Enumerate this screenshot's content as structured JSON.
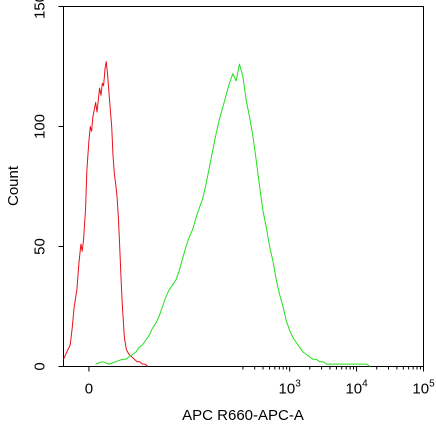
{
  "chart_data": {
    "type": "line",
    "title": "",
    "xlabel": "APC R660-APC-A",
    "ylabel": "Count",
    "scale_x": "biexponential (log above 10^2)",
    "ylim": [
      0,
      150
    ],
    "y_ticks": [
      {
        "value": 0,
        "label": "0"
      },
      {
        "value": 50,
        "label": "50"
      },
      {
        "value": 100,
        "label": "100"
      },
      {
        "value": 150,
        "label": "150"
      }
    ],
    "x_ticks": [
      {
        "value": 0,
        "label": "0",
        "sup": ""
      },
      {
        "value": 3,
        "label": "10",
        "sup": "3"
      },
      {
        "value": 4,
        "label": "10",
        "sup": "4"
      },
      {
        "value": 5,
        "label": "10",
        "sup": "5"
      }
    ],
    "xlim": [
      -0.38,
      5.0
    ],
    "grid": false,
    "legend": "none",
    "series": [
      {
        "color": "#e8101a",
        "x": [
          -0.38,
          -0.33,
          -0.28,
          -0.25,
          -0.22,
          -0.18,
          -0.15,
          -0.12,
          -0.1,
          -0.08,
          -0.05,
          -0.03,
          0.0,
          0.02,
          0.04,
          0.06,
          0.08,
          0.1,
          0.12,
          0.14,
          0.16,
          0.18,
          0.2,
          0.22,
          0.24,
          0.26,
          0.28,
          0.3,
          0.32,
          0.34,
          0.36,
          0.38,
          0.4,
          0.42,
          0.44,
          0.46,
          0.48,
          0.5,
          0.53,
          0.56,
          0.6,
          0.64,
          0.68,
          0.72,
          0.76,
          0.8,
          0.84,
          0.88
        ],
        "y": [
          3,
          6,
          9,
          16,
          25,
          32,
          43,
          51,
          48,
          53,
          66,
          82,
          94,
          100,
          98,
          104,
          107,
          110,
          106,
          111,
          116,
          113,
          118,
          117,
          124,
          127,
          121,
          114,
          107,
          100,
          88,
          80,
          76,
          71,
          62,
          50,
          37,
          25,
          12,
          7,
          5,
          4,
          3,
          2,
          2,
          1,
          1,
          0
        ]
      },
      {
        "color": "#22e01a",
        "x": [
          0.1,
          0.2,
          0.3,
          0.4,
          0.5,
          0.55,
          0.6,
          0.65,
          0.7,
          0.75,
          0.8,
          0.85,
          0.9,
          0.95,
          1.0,
          1.05,
          1.1,
          1.15,
          1.2,
          1.25,
          1.3,
          1.35,
          1.4,
          1.45,
          1.5,
          1.55,
          1.6,
          1.65,
          1.7,
          1.75,
          1.8,
          1.85,
          1.9,
          1.95,
          2.0,
          2.05,
          2.1,
          2.15,
          2.2,
          2.25,
          2.3,
          2.35,
          2.4,
          2.45,
          2.5,
          2.55,
          2.6,
          2.65,
          2.7,
          2.75,
          2.8,
          2.85,
          2.9,
          2.95,
          3.0,
          3.05,
          3.1,
          3.15,
          3.2,
          3.25,
          3.3,
          3.35,
          3.4,
          3.45,
          3.5,
          3.55,
          3.6,
          3.65,
          3.7,
          3.75,
          3.8,
          3.85,
          3.9,
          3.95,
          4.0,
          4.05,
          4.1,
          4.15,
          4.2
        ],
        "y": [
          1,
          2,
          1,
          2,
          3,
          3,
          4,
          5,
          6,
          8,
          9,
          11,
          13,
          16,
          18,
          21,
          25,
          29,
          32,
          34,
          36,
          40,
          45,
          50,
          54,
          57,
          62,
          66,
          70,
          76,
          83,
          90,
          97,
          103,
          108,
          113,
          118,
          122,
          119,
          126,
          121,
          111,
          104,
          96,
          86,
          75,
          65,
          58,
          50,
          44,
          36,
          30,
          25,
          19,
          15,
          12,
          10,
          8,
          6,
          5,
          4,
          3,
          3,
          2,
          2,
          1,
          1,
          1,
          1,
          1,
          1,
          1,
          1,
          1,
          1,
          1,
          1,
          1,
          0
        ]
      }
    ]
  }
}
